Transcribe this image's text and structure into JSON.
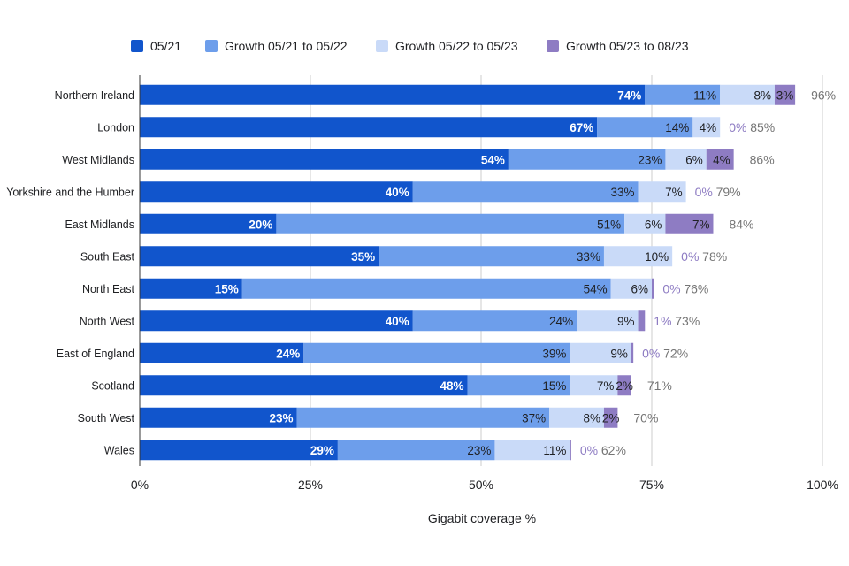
{
  "chart_data": {
    "type": "bar",
    "orientation": "horizontal",
    "stacked": true,
    "categories": [
      "Northern Ireland",
      "London",
      "West Midlands",
      "Yorkshire and the Humber",
      "East Midlands",
      "South East",
      "North East",
      "North West",
      "East of England",
      "Scotland",
      "South West",
      "Wales"
    ],
    "series": [
      {
        "name": "05/21",
        "color": "#1155cc",
        "values": [
          74,
          67,
          54,
          40,
          20,
          35,
          15,
          40,
          24,
          48,
          23,
          29
        ],
        "labels": [
          "74%",
          "67%",
          "54%",
          "40%",
          "20%",
          "35%",
          "15%",
          "40%",
          "24%",
          "48%",
          "23%",
          "29%"
        ]
      },
      {
        "name": "Growth 05/21 to 05/22",
        "color": "#6d9eeb",
        "values": [
          11,
          14,
          23,
          33,
          51,
          33,
          54,
          24,
          39,
          15,
          37,
          23
        ],
        "labels": [
          "11%",
          "14%",
          "23%",
          "33%",
          "51%",
          "33%",
          "54%",
          "24%",
          "39%",
          "15%",
          "37%",
          "23%"
        ]
      },
      {
        "name": "Growth 05/22 to 05/23",
        "color": "#c9daf8",
        "values": [
          8,
          4,
          6,
          7,
          6,
          10,
          6,
          9,
          9,
          7,
          8,
          11
        ],
        "labels": [
          "8%",
          "4%",
          "6%",
          "7%",
          "6%",
          "10%",
          "6%",
          "9%",
          "9%",
          "7%",
          "8%",
          "11%"
        ]
      },
      {
        "name": "Growth 05/23 to 08/23",
        "color": "#8e7cc3",
        "values": [
          3,
          0,
          4,
          0,
          7,
          0,
          0.3,
          1,
          0.3,
          2,
          2,
          0.2
        ],
        "labels": [
          "3%",
          "0%",
          "4%",
          "0%",
          "7%",
          "0%",
          "0%",
          "1%",
          "0%",
          "2%",
          "2%",
          "0%"
        ]
      }
    ],
    "totals": [
      "96%",
      "85%",
      "86%",
      "79%",
      "84%",
      "78%",
      "76%",
      "73%",
      "72%",
      "71%",
      "70%",
      "62%"
    ],
    "xlabel": "Gigabit coverage %",
    "xlim": [
      0,
      100
    ],
    "xticks": [
      "0%",
      "25%",
      "50%",
      "75%",
      "100%"
    ],
    "grid": true,
    "legend_position": "top"
  }
}
